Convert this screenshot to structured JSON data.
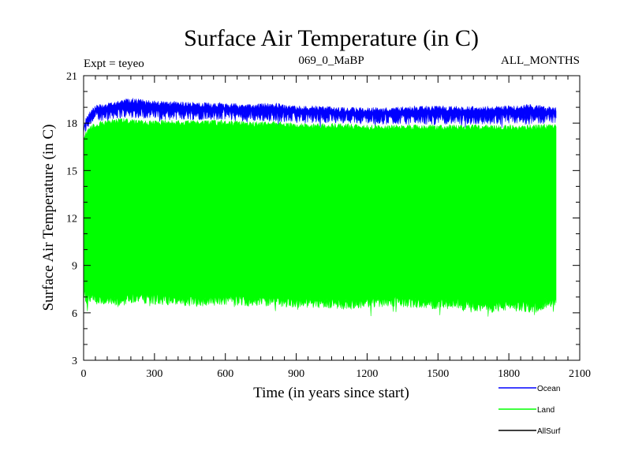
{
  "chart_data": {
    "type": "area",
    "title": "Surface Air Temperature (in C)",
    "subtitle_left": "Expt = teyeo",
    "subtitle_center": "069_0_MaBP",
    "subtitle_right": "ALL_MONTHS",
    "xlabel": "Time (in years since start)",
    "ylabel": "Surface Air Temperature (in C)",
    "xlim": [
      0,
      2100
    ],
    "ylim": [
      3,
      21
    ],
    "x_ticks": [
      0,
      300,
      600,
      900,
      1200,
      1500,
      1800,
      2100
    ],
    "x_tick_labels": [
      "0",
      "300",
      "600",
      "900",
      "1200",
      "1500",
      "1800",
      "2100"
    ],
    "y_ticks": [
      3,
      6,
      9,
      12,
      15,
      18,
      21
    ],
    "y_tick_labels": [
      "3",
      "6",
      "9",
      "12",
      "15",
      "18",
      "21"
    ],
    "legend_position": "bottom-right",
    "series": [
      {
        "name": "Ocean",
        "color": "#0000ff",
        "style": "band",
        "x": [
          0,
          10,
          30,
          60,
          100,
          150,
          200,
          250,
          300,
          400,
          500,
          600,
          700,
          800,
          900,
          1000,
          1100,
          1200,
          1300,
          1400,
          1500,
          1600,
          1700,
          1800,
          1900,
          2000
        ],
        "upper": [
          17.8,
          18.4,
          18.9,
          19.2,
          19.3,
          19.5,
          19.6,
          19.5,
          19.4,
          19.4,
          19.3,
          19.3,
          19.2,
          19.3,
          19.1,
          19.1,
          19.0,
          19.0,
          19.0,
          19.1,
          19.1,
          19.1,
          19.1,
          19.1,
          19.2,
          19.0
        ],
        "lower": [
          17.1,
          17.4,
          17.9,
          18.1,
          18.2,
          18.3,
          18.3,
          18.3,
          18.2,
          18.2,
          18.2,
          18.2,
          18.1,
          18.1,
          18.0,
          18.0,
          18.0,
          17.9,
          17.9,
          17.9,
          17.9,
          17.9,
          17.9,
          17.9,
          17.9,
          18.0
        ]
      },
      {
        "name": "Land",
        "color": "#00ff00",
        "style": "band",
        "x": [
          0,
          10,
          30,
          60,
          100,
          150,
          200,
          250,
          300,
          400,
          500,
          600,
          700,
          800,
          900,
          1000,
          1100,
          1200,
          1300,
          1400,
          1500,
          1600,
          1700,
          1800,
          1900,
          2000
        ],
        "upper": [
          17.0,
          17.5,
          17.9,
          18.1,
          18.2,
          18.3,
          18.3,
          18.2,
          18.2,
          18.2,
          18.2,
          18.2,
          18.1,
          18.1,
          18.0,
          18.0,
          18.0,
          17.9,
          17.9,
          17.9,
          17.9,
          17.9,
          17.9,
          17.9,
          17.9,
          18.0
        ],
        "lower": [
          7.0,
          6.5,
          6.6,
          6.5,
          6.4,
          6.3,
          6.6,
          6.6,
          6.5,
          6.4,
          6.4,
          6.5,
          6.4,
          6.4,
          6.3,
          6.3,
          6.2,
          6.3,
          6.4,
          6.3,
          6.2,
          6.2,
          6.0,
          6.1,
          6.0,
          6.5
        ]
      },
      {
        "name": "AllSurf",
        "color": "#000000",
        "style": "line",
        "x": [],
        "values": []
      }
    ]
  }
}
